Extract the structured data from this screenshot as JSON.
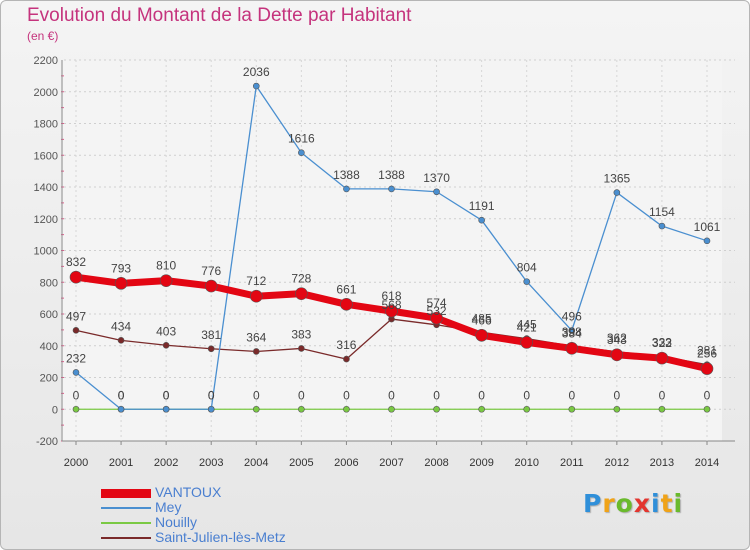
{
  "title": "Evolution du Montant de la Dette par Habitant",
  "subtitle": "(en €)",
  "logo": {
    "text": "Proxiti",
    "letters": [
      {
        "char": "P",
        "color": "#2f8fd9"
      },
      {
        "char": "r",
        "color": "#f0a318"
      },
      {
        "char": "o",
        "color": "#6aba2c"
      },
      {
        "char": "x",
        "color": "#e3352f"
      },
      {
        "char": "i",
        "color": "#2f8fd9"
      },
      {
        "char": "t",
        "color": "#f0a318"
      },
      {
        "char": "i",
        "color": "#6aba2c"
      }
    ]
  },
  "chart_data": {
    "type": "line",
    "title": "Evolution du Montant de la Dette par Habitant",
    "subtitle": "(en €)",
    "x": [
      2000,
      2001,
      2002,
      2003,
      2004,
      2005,
      2006,
      2007,
      2008,
      2009,
      2010,
      2011,
      2012,
      2013,
      2014
    ],
    "ylim": [
      -200,
      2200
    ],
    "yticks": [
      -200,
      0,
      200,
      400,
      600,
      800,
      1000,
      1200,
      1400,
      1600,
      1800,
      2000,
      2200
    ],
    "grid": true,
    "legend_position": "bottom-left",
    "series": [
      {
        "name": "VANTOUX",
        "color": "#e30613",
        "values": [
          832,
          793,
          810,
          776,
          712,
          728,
          661,
          618,
          574,
          466,
          421,
          384,
          343,
          322,
          256
        ]
      },
      {
        "name": "Mey",
        "color": "#4a8fd0",
        "values": [
          232,
          0,
          0,
          0,
          2036,
          1616,
          1388,
          1388,
          1370,
          1191,
          804,
          496,
          1365,
          1154,
          1061
        ]
      },
      {
        "name": "Nouilly",
        "color": "#7ac943",
        "values": [
          0,
          0,
          0,
          0,
          0,
          0,
          0,
          0,
          0,
          0,
          0,
          0,
          0,
          0,
          0
        ]
      },
      {
        "name": "Saint-Julien-lès-Metz",
        "color": "#7a2a2a",
        "values": [
          497,
          434,
          403,
          381,
          364,
          383,
          316,
          568,
          532,
          485,
          445,
          398,
          362,
          333,
          281
        ]
      }
    ]
  }
}
